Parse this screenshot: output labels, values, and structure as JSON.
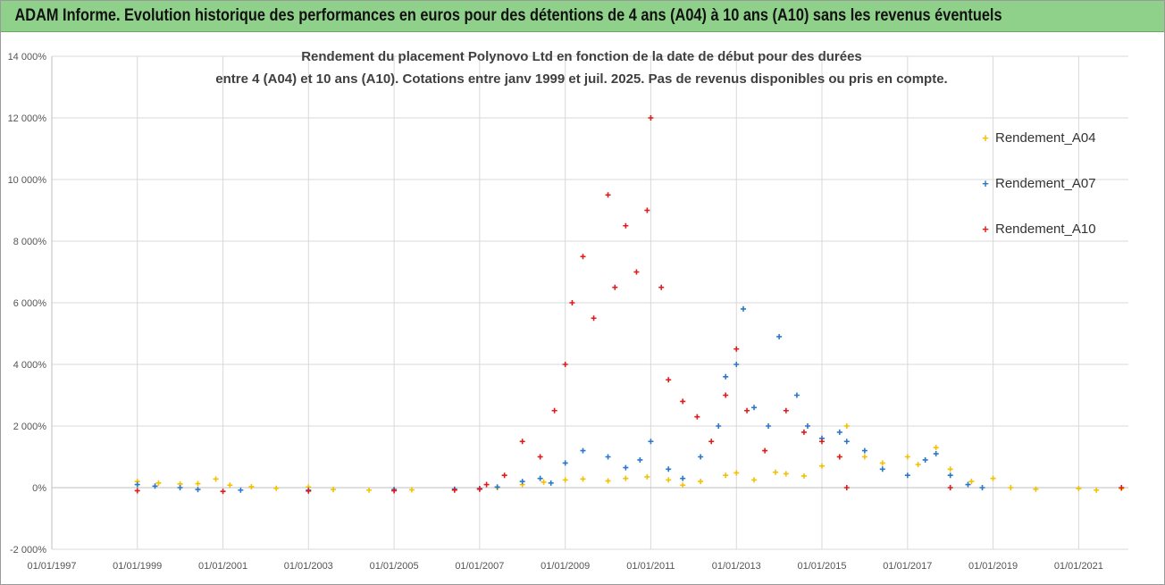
{
  "banner": {
    "title": "ADAM Informe. Evolution historique des performances en euros pour des détentions de 4 ans (A04) à 10 ans (A10) sans les revenus éventuels"
  },
  "chart_data": {
    "type": "scatter",
    "title_line1": "Rendement du placement Polynovo Ltd en fonction de la date de début pour des durées",
    "title_line2": "entre 4 (A04) et 10 ans (A10). Cotations entre janv 1999 et juil. 2025. Pas de revenus disponibles ou pris en compte.",
    "xlabel": "",
    "ylabel": "",
    "x_range": [
      "1997-01-01",
      "2022-03-01"
    ],
    "ylim": [
      -2000,
      14000
    ],
    "y_ticks": [
      -2000,
      0,
      2000,
      4000,
      6000,
      8000,
      10000,
      12000,
      14000
    ],
    "y_tick_labels": [
      "-2 000%",
      "0%",
      "2 000%",
      "4 000%",
      "6 000%",
      "8 000%",
      "10 000%",
      "12 000%",
      "14 000%"
    ],
    "x_ticks": [
      "1997-01-01",
      "1999-01-01",
      "2001-01-01",
      "2003-01-01",
      "2005-01-01",
      "2007-01-01",
      "2009-01-01",
      "2011-01-01",
      "2013-01-01",
      "2015-01-01",
      "2017-01-01",
      "2019-01-01",
      "2021-01-01"
    ],
    "x_tick_labels": [
      "01/01/1997",
      "01/01/1999",
      "01/01/2001",
      "01/01/2003",
      "01/01/2005",
      "01/01/2007",
      "01/01/2009",
      "01/01/2011",
      "01/01/2013",
      "01/01/2015",
      "01/01/2017",
      "01/01/2019",
      "01/01/2021"
    ],
    "grid": true,
    "legend_position": "right",
    "marker": "+",
    "series": [
      {
        "name": "Rendement_A04",
        "color": "#f5c000",
        "points": [
          [
            "1999-01-01",
            200
          ],
          [
            "1999-07-01",
            150
          ],
          [
            "2000-01-01",
            120
          ],
          [
            "2000-06-01",
            130
          ],
          [
            "2000-11-01",
            280
          ],
          [
            "2001-03-01",
            80
          ],
          [
            "2001-09-01",
            30
          ],
          [
            "2002-04-01",
            -20
          ],
          [
            "2003-01-01",
            20
          ],
          [
            "2003-08-01",
            -60
          ],
          [
            "2004-06-01",
            -80
          ],
          [
            "2005-06-01",
            -70
          ],
          [
            "2006-06-01",
            -60
          ],
          [
            "2007-01-01",
            -40
          ],
          [
            "2007-06-01",
            0
          ],
          [
            "2008-01-01",
            100
          ],
          [
            "2008-07-01",
            180
          ],
          [
            "2009-01-01",
            250
          ],
          [
            "2009-06-01",
            280
          ],
          [
            "2010-01-01",
            220
          ],
          [
            "2010-06-01",
            300
          ],
          [
            "2010-12-01",
            350
          ],
          [
            "2011-06-01",
            250
          ],
          [
            "2011-10-01",
            80
          ],
          [
            "2012-03-01",
            200
          ],
          [
            "2012-10-01",
            400
          ],
          [
            "2013-01-01",
            480
          ],
          [
            "2013-06-01",
            250
          ],
          [
            "2013-12-01",
            500
          ],
          [
            "2014-03-01",
            450
          ],
          [
            "2014-08-01",
            380
          ],
          [
            "2015-01-01",
            700
          ],
          [
            "2015-06-01",
            1000
          ],
          [
            "2015-08-01",
            2000
          ],
          [
            "2016-01-01",
            1000
          ],
          [
            "2016-06-01",
            800
          ],
          [
            "2017-01-01",
            1000
          ],
          [
            "2017-04-01",
            750
          ],
          [
            "2017-09-01",
            1300
          ],
          [
            "2018-01-01",
            600
          ],
          [
            "2018-07-01",
            200
          ],
          [
            "2019-01-01",
            300
          ],
          [
            "2019-06-01",
            0
          ],
          [
            "2020-01-01",
            -50
          ],
          [
            "2021-01-01",
            -30
          ],
          [
            "2021-06-01",
            -80
          ],
          [
            "2022-01-01",
            -30
          ]
        ]
      },
      {
        "name": "Rendement_A07",
        "color": "#2a78c8",
        "points": [
          [
            "1999-01-01",
            100
          ],
          [
            "1999-06-01",
            50
          ],
          [
            "2000-01-01",
            0
          ],
          [
            "2000-06-01",
            -60
          ],
          [
            "2001-06-01",
            -80
          ],
          [
            "2003-01-01",
            -80
          ],
          [
            "2005-01-01",
            -60
          ],
          [
            "2006-06-01",
            -50
          ],
          [
            "2007-01-01",
            -30
          ],
          [
            "2007-06-01",
            20
          ],
          [
            "2008-01-01",
            200
          ],
          [
            "2008-06-01",
            300
          ],
          [
            "2008-09-01",
            150
          ],
          [
            "2009-01-01",
            800
          ],
          [
            "2009-06-01",
            1200
          ],
          [
            "2010-01-01",
            1000
          ],
          [
            "2010-06-01",
            650
          ],
          [
            "2010-10-01",
            900
          ],
          [
            "2011-01-01",
            1500
          ],
          [
            "2011-06-01",
            600
          ],
          [
            "2011-10-01",
            300
          ],
          [
            "2012-03-01",
            1000
          ],
          [
            "2012-08-01",
            2000
          ],
          [
            "2012-10-01",
            3600
          ],
          [
            "2013-01-01",
            4000
          ],
          [
            "2013-03-01",
            5800
          ],
          [
            "2013-06-01",
            2600
          ],
          [
            "2013-10-01",
            2000
          ],
          [
            "2014-01-01",
            4900
          ],
          [
            "2014-06-01",
            3000
          ],
          [
            "2014-09-01",
            2000
          ],
          [
            "2015-01-01",
            1600
          ],
          [
            "2015-06-01",
            1800
          ],
          [
            "2015-08-01",
            1500
          ],
          [
            "2016-01-01",
            1200
          ],
          [
            "2016-06-01",
            600
          ],
          [
            "2017-01-01",
            400
          ],
          [
            "2017-06-01",
            900
          ],
          [
            "2017-09-01",
            1100
          ],
          [
            "2018-01-01",
            400
          ],
          [
            "2018-06-01",
            100
          ],
          [
            "2018-10-01",
            0
          ]
        ]
      },
      {
        "name": "Rendement_A10",
        "color": "#e41a1a",
        "points": [
          [
            "1999-01-01",
            -100
          ],
          [
            "2001-01-01",
            -120
          ],
          [
            "2003-01-01",
            -110
          ],
          [
            "2005-01-01",
            -100
          ],
          [
            "2006-06-01",
            -80
          ],
          [
            "2007-01-01",
            -50
          ],
          [
            "2007-03-01",
            100
          ],
          [
            "2007-08-01",
            400
          ],
          [
            "2008-01-01",
            1500
          ],
          [
            "2008-06-01",
            1000
          ],
          [
            "2008-10-01",
            2500
          ],
          [
            "2009-01-01",
            4000
          ],
          [
            "2009-03-01",
            6000
          ],
          [
            "2009-06-01",
            7500
          ],
          [
            "2009-09-01",
            5500
          ],
          [
            "2010-01-01",
            9500
          ],
          [
            "2010-03-01",
            6500
          ],
          [
            "2010-06-01",
            8500
          ],
          [
            "2010-09-01",
            7000
          ],
          [
            "2010-12-01",
            9000
          ],
          [
            "2011-01-01",
            12000
          ],
          [
            "2011-04-01",
            6500
          ],
          [
            "2011-06-01",
            3500
          ],
          [
            "2011-10-01",
            2800
          ],
          [
            "2012-02-01",
            2300
          ],
          [
            "2012-06-01",
            1500
          ],
          [
            "2012-10-01",
            3000
          ],
          [
            "2013-01-01",
            4500
          ],
          [
            "2013-04-01",
            2500
          ],
          [
            "2013-09-01",
            1200
          ],
          [
            "2014-03-01",
            2500
          ],
          [
            "2014-08-01",
            1800
          ],
          [
            "2015-01-01",
            1500
          ],
          [
            "2015-06-01",
            1000
          ],
          [
            "2015-08-01",
            0
          ],
          [
            "2018-01-01",
            0
          ],
          [
            "2022-01-01",
            0
          ]
        ]
      }
    ]
  }
}
